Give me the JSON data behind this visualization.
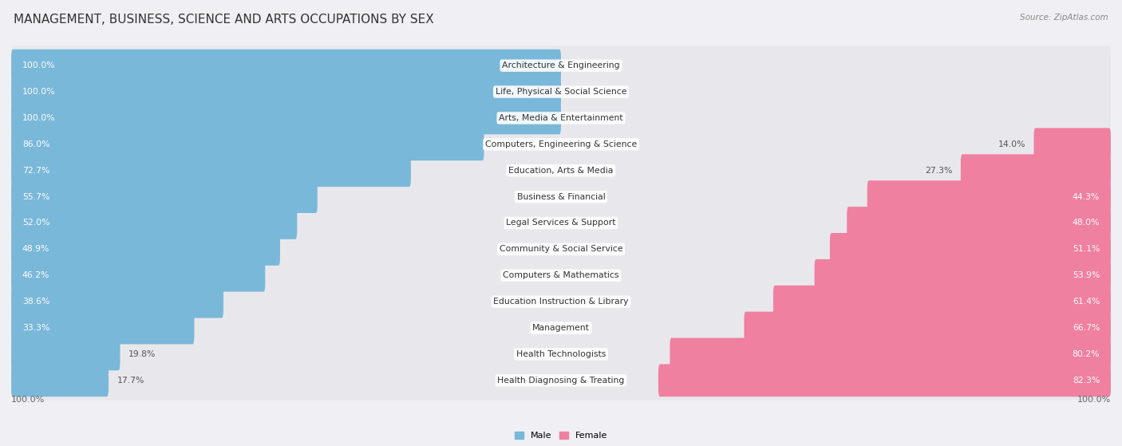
{
  "title": "MANAGEMENT, BUSINESS, SCIENCE AND ARTS OCCUPATIONS BY SEX",
  "source": "Source: ZipAtlas.com",
  "categories": [
    "Architecture & Engineering",
    "Life, Physical & Social Science",
    "Arts, Media & Entertainment",
    "Computers, Engineering & Science",
    "Education, Arts & Media",
    "Business & Financial",
    "Legal Services & Support",
    "Community & Social Service",
    "Computers & Mathematics",
    "Education Instruction & Library",
    "Management",
    "Health Technologists",
    "Health Diagnosing & Treating"
  ],
  "male_pct": [
    100.0,
    100.0,
    100.0,
    86.0,
    72.7,
    55.7,
    52.0,
    48.9,
    46.2,
    38.6,
    33.3,
    19.8,
    17.7
  ],
  "female_pct": [
    0.0,
    0.0,
    0.0,
    14.0,
    27.3,
    44.3,
    48.0,
    51.1,
    53.9,
    61.4,
    66.7,
    80.2,
    82.3
  ],
  "male_color": "#7ab8d9",
  "female_color": "#f080a0",
  "row_bg_color": "#e8e8ec",
  "bg_color": "#f0f0f4",
  "title_fontsize": 11,
  "label_fontsize": 7.8,
  "tick_fontsize": 8
}
